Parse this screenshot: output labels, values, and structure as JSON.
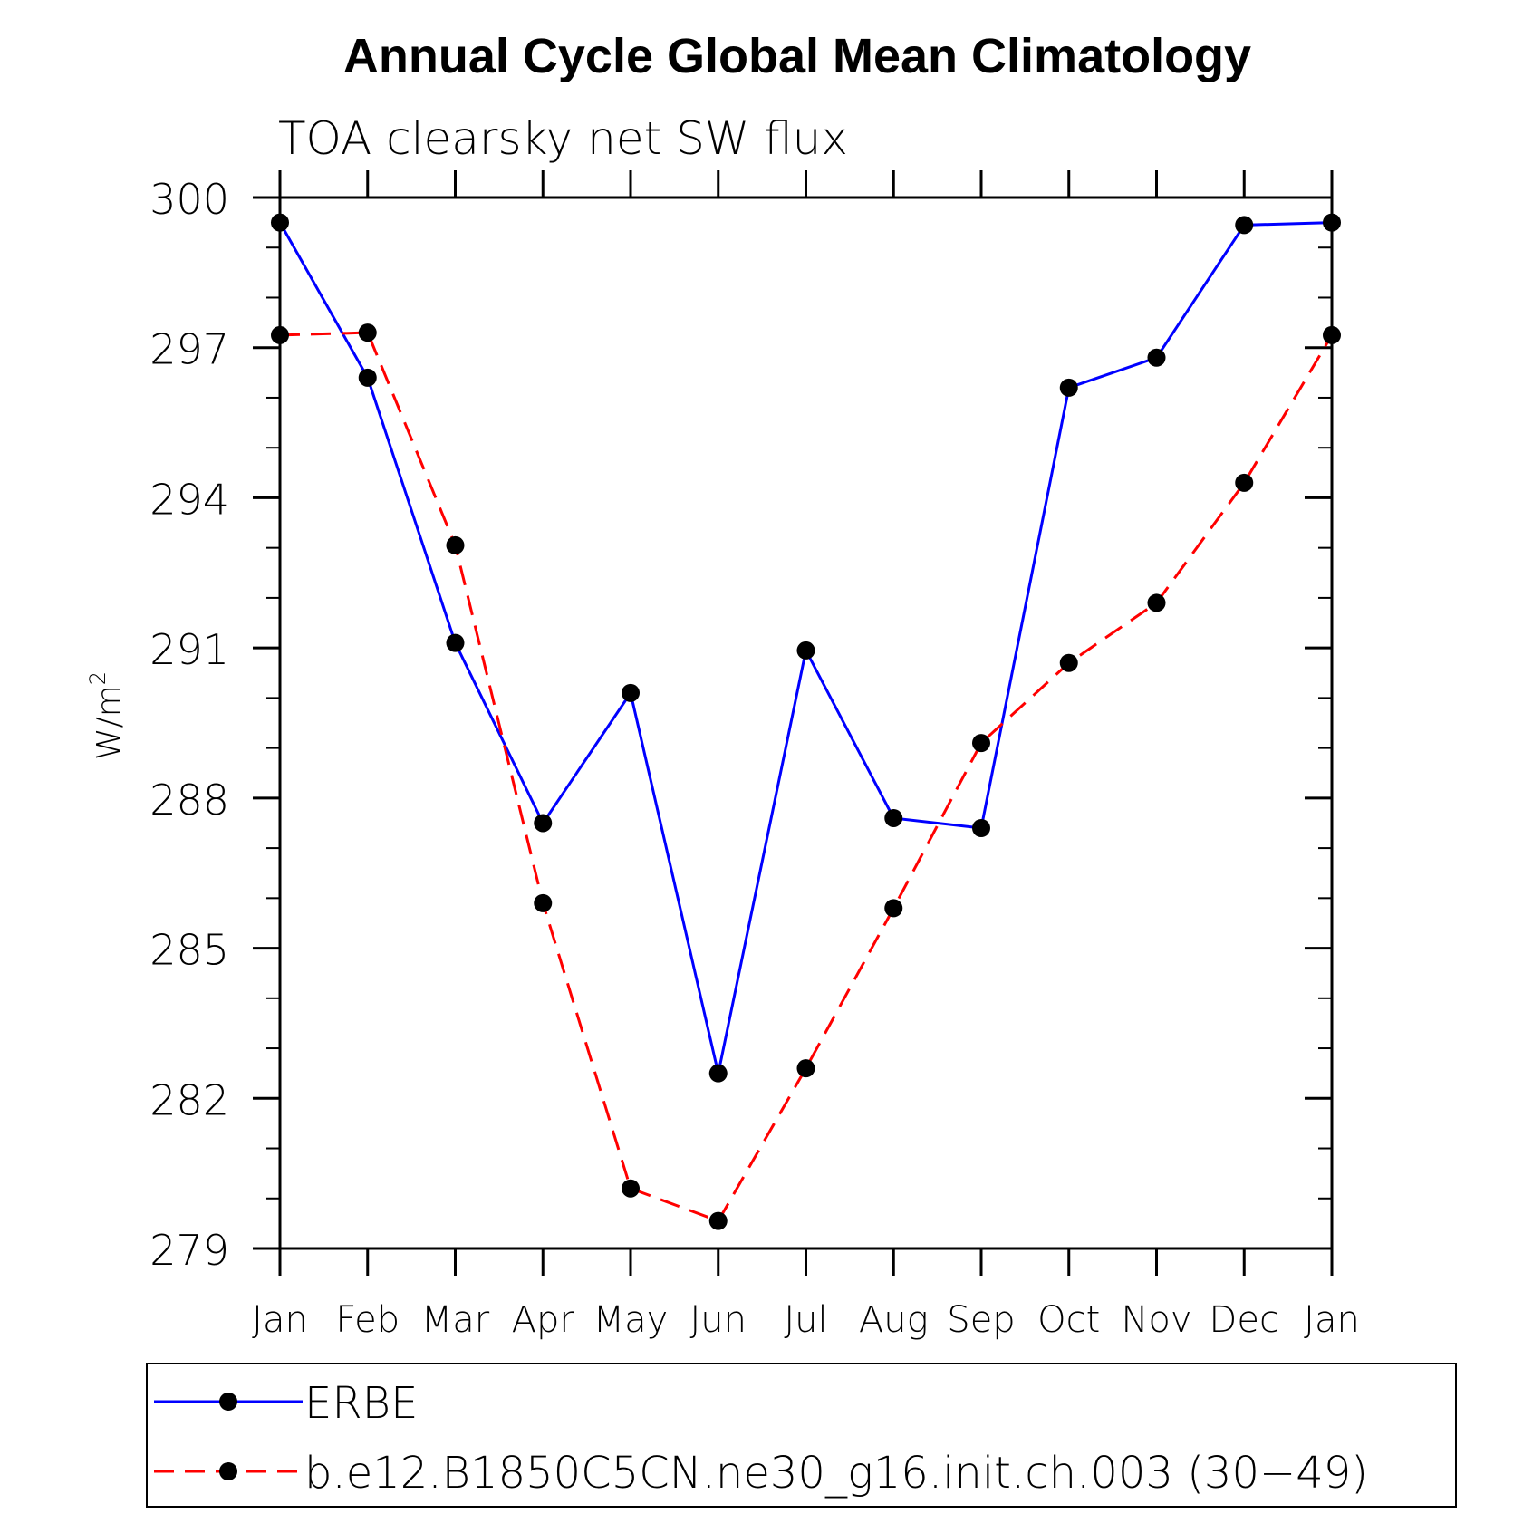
{
  "chart_data": {
    "type": "line",
    "title": "Annual Cycle Global Mean Climatology",
    "subtitle": "TOA clearsky net SW flux",
    "ylabel": "W/m",
    "ylabel_superscript": "2",
    "xlabel": "",
    "categories": [
      "Jan",
      "Feb",
      "Mar",
      "Apr",
      "May",
      "Jun",
      "Jul",
      "Aug",
      "Sep",
      "Oct",
      "Nov",
      "Dec",
      "Jan"
    ],
    "ylim": [
      279,
      300
    ],
    "yticks": [
      279,
      282,
      285,
      288,
      291,
      294,
      297,
      300
    ],
    "y_minor_step": 1,
    "grid": false,
    "legend_position": "bottom",
    "series": [
      {
        "name": "ERBE",
        "color": "#0000ff",
        "line_style": "solid",
        "marker": "filled-circle",
        "values": [
          299.5,
          296.4,
          291.1,
          287.5,
          290.1,
          282.5,
          290.95,
          287.6,
          287.4,
          296.2,
          296.8,
          299.45,
          299.5
        ]
      },
      {
        "name": "b.e12.B1850C5CN.ne30_g16.init.ch.003 (30−49)",
        "color": "#ff0000",
        "line_style": "dashed",
        "marker": "filled-circle",
        "values": [
          297.25,
          297.3,
          293.05,
          285.9,
          280.2,
          279.55,
          282.6,
          285.8,
          289.1,
          290.7,
          291.9,
          294.3,
          297.25
        ]
      }
    ]
  }
}
